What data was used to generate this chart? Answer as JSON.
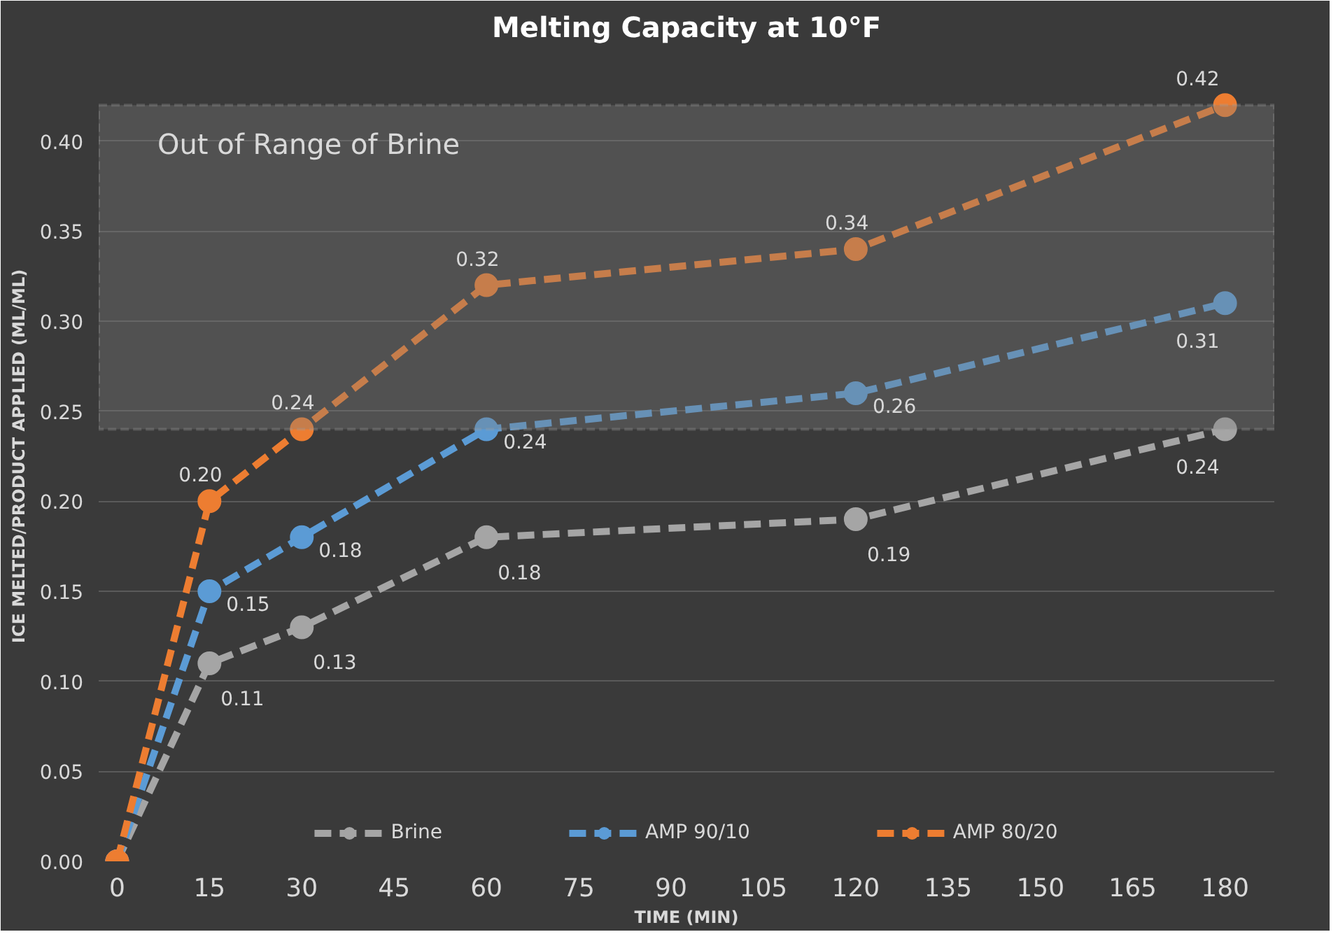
{
  "chart_data": {
    "type": "line",
    "title": "Melting Capacity at 10°F",
    "xlabel": "TIME (MIN)",
    "ylabel": "ICE MELTED/PRODUCT APPLIED (ML/ML)",
    "x": [
      0,
      15,
      30,
      60,
      120,
      180
    ],
    "series": [
      {
        "name": "Brine",
        "color": "#a5a5a5",
        "values": [
          0,
          0.11,
          0.13,
          0.18,
          0.19,
          0.24
        ],
        "value_labels": [
          null,
          "0.11",
          "0.13",
          "0.18",
          "0.19",
          "0.24"
        ]
      },
      {
        "name": "AMP 90/10",
        "color": "#5b9bd5",
        "values": [
          0,
          0.15,
          0.18,
          0.24,
          0.26,
          0.31
        ],
        "value_labels": [
          null,
          "0.15",
          "0.18",
          "0.24",
          "0.26",
          "0.31"
        ]
      },
      {
        "name": "AMP 80/20",
        "color": "#ed7d31",
        "values": [
          0,
          0.2,
          0.24,
          0.32,
          0.34,
          0.42
        ],
        "value_labels": [
          null,
          "0.20",
          "0.24",
          "0.32",
          "0.34",
          "0.42"
        ]
      }
    ],
    "xlim": [
      -3,
      188
    ],
    "xticks": [
      0,
      15,
      30,
      45,
      60,
      75,
      90,
      105,
      120,
      135,
      150,
      165,
      180
    ],
    "ylim": [
      0,
      0.45
    ],
    "yticks": [
      {
        "value": 0,
        "label": "0.00"
      },
      {
        "value": 0.05,
        "label": "0.05"
      },
      {
        "value": 0.1,
        "label": "0.10"
      },
      {
        "value": 0.15,
        "label": "0.15"
      },
      {
        "value": 0.2,
        "label": "0.20"
      },
      {
        "value": 0.25,
        "label": "0.25"
      },
      {
        "value": 0.3,
        "label": "0.30"
      },
      {
        "value": 0.35,
        "label": "0.35"
      },
      {
        "value": 0.4,
        "label": "0.40"
      }
    ],
    "bands": [
      {
        "axis": "y",
        "from": 0.24,
        "to": 0.42,
        "label": "Out of Range of Brine",
        "color": "#7f7f7f"
      }
    ],
    "grid": "y",
    "legend": "bottom",
    "marker": "circle",
    "line_style": "dashed"
  }
}
